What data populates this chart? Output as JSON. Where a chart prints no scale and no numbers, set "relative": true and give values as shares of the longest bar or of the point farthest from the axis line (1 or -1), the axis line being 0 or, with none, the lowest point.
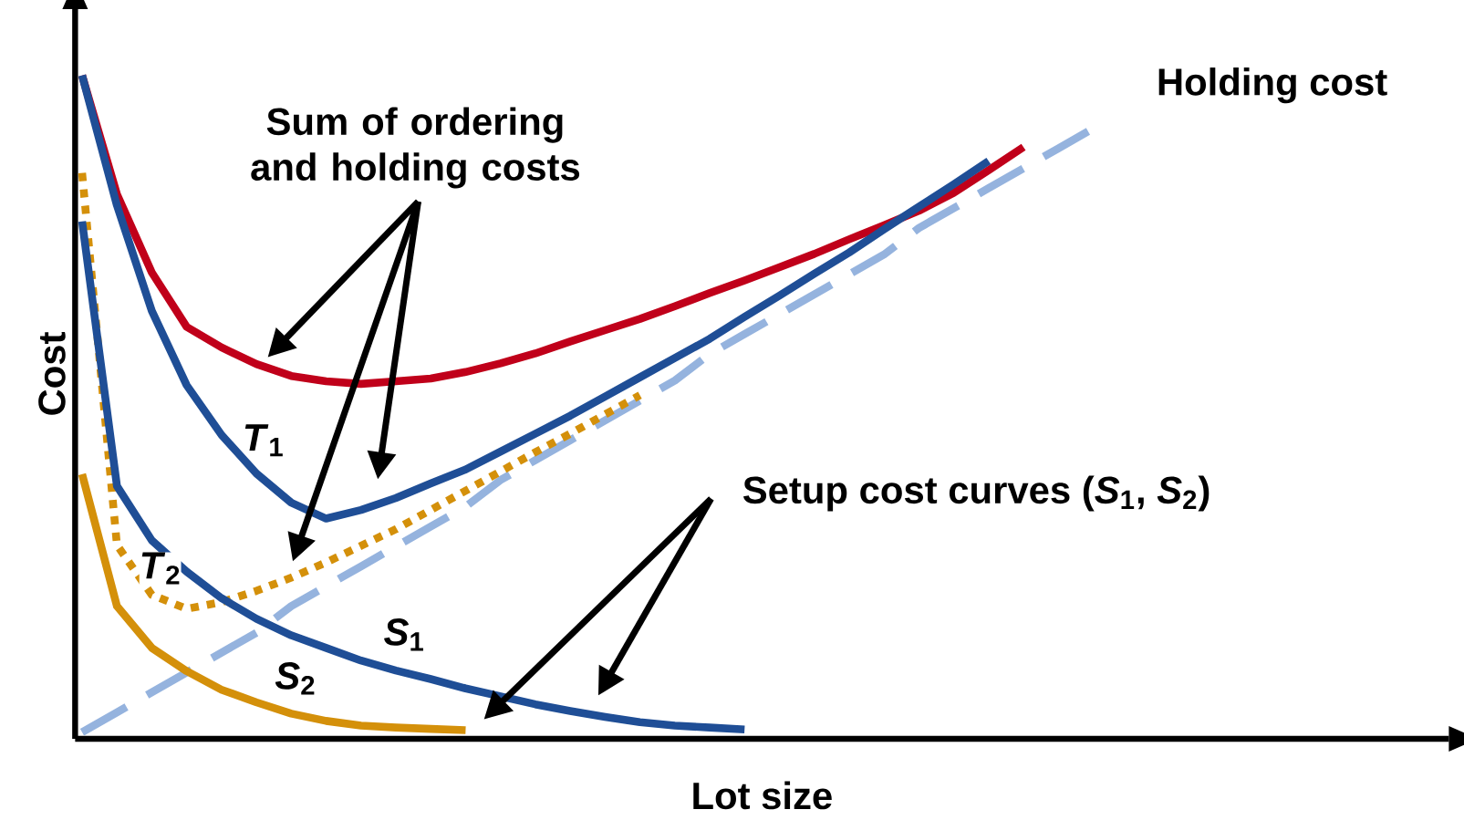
{
  "chart_data": {
    "type": "line",
    "relative": true,
    "xlabel": "Lot size",
    "ylabel": "Cost",
    "tick_labels": false,
    "marker": "none",
    "categories": [
      null,
      null,
      null,
      null,
      null,
      null,
      null,
      null,
      null,
      null,
      null,
      null,
      null,
      null,
      null,
      null,
      null,
      null,
      null,
      null,
      null,
      null,
      null,
      null,
      null,
      null,
      null,
      null,
      null,
      null
    ],
    "annotations": [
      "Sum of ordering and holding costs",
      "Setup cost curves (*S*$_{1}$, *S*$_{2}$)"
    ],
    "series": [
      {
        "name": "Holding cost",
        "color": "#95b3de",
        "line_style": "dashed",
        "values": [
          0.01,
          0.04,
          0.07,
          0.1,
          0.13,
          0.16,
          0.2,
          0.23,
          0.26,
          0.29,
          0.32,
          0.35,
          0.39,
          0.42,
          0.45,
          0.48,
          0.51,
          0.54,
          0.58,
          0.61,
          0.64,
          0.67,
          0.7,
          0.73,
          0.77,
          0.8,
          0.83,
          0.86,
          0.89,
          0.92
        ]
      },
      {
        "color": "#c0001a",
        "line_style": "solid",
        "values": [
          1.0,
          0.821,
          0.703,
          0.621,
          0.59,
          0.565,
          0.547,
          0.539,
          0.535,
          0.539,
          0.543,
          0.553,
          0.566,
          0.581,
          0.599,
          0.616,
          0.633,
          0.652,
          0.672,
          0.691,
          0.711,
          0.731,
          0.753,
          0.774,
          0.796,
          0.823,
          0.857,
          0.892,
          null,
          null
        ]
      },
      {
        "name": "*T*$_{1}$",
        "color": "#1f4e96",
        "line_style": "solid",
        "values": [
          1.0,
          0.804,
          0.645,
          0.533,
          0.458,
          0.4,
          0.356,
          0.332,
          0.345,
          0.363,
          0.385,
          0.406,
          0.433,
          0.46,
          0.487,
          0.516,
          0.545,
          0.574,
          0.603,
          0.636,
          0.668,
          0.701,
          0.733,
          0.768,
          0.802,
          0.836,
          0.871,
          null,
          null,
          null
        ]
      },
      {
        "name": "*T*$_{2}$",
        "color": "#d4900a",
        "line_style": "dotted",
        "values": [
          0.853,
          0.292,
          0.217,
          0.196,
          0.206,
          0.223,
          0.243,
          0.266,
          0.291,
          0.316,
          0.345,
          0.374,
          0.403,
          0.432,
          0.46,
          0.489,
          0.518,
          null,
          null,
          null,
          null,
          null,
          null,
          null,
          null,
          null,
          null,
          null,
          null,
          null
        ]
      },
      {
        "name": "*S*$_{1}$",
        "color": "#1f4e96",
        "line_style": "solid",
        "values": [
          0.78,
          0.381,
          0.299,
          0.252,
          0.212,
          0.181,
          0.156,
          0.137,
          0.118,
          0.103,
          0.09,
          0.076,
          0.064,
          0.052,
          0.042,
          0.033,
          0.025,
          0.02,
          0.017,
          0.014,
          null,
          null,
          null,
          null,
          null,
          null,
          null,
          null,
          null,
          null
        ]
      },
      {
        "name": "*S*$_{2}$",
        "color": "#d4900a",
        "line_style": "solid",
        "values": [
          0.399,
          0.2,
          0.137,
          0.102,
          0.074,
          0.055,
          0.038,
          0.027,
          0.02,
          0.017,
          0.015,
          0.013,
          null,
          null,
          null,
          null,
          null,
          null,
          null,
          null,
          null,
          null,
          null,
          null,
          null,
          null,
          null,
          null,
          null,
          null
        ]
      }
    ]
  }
}
